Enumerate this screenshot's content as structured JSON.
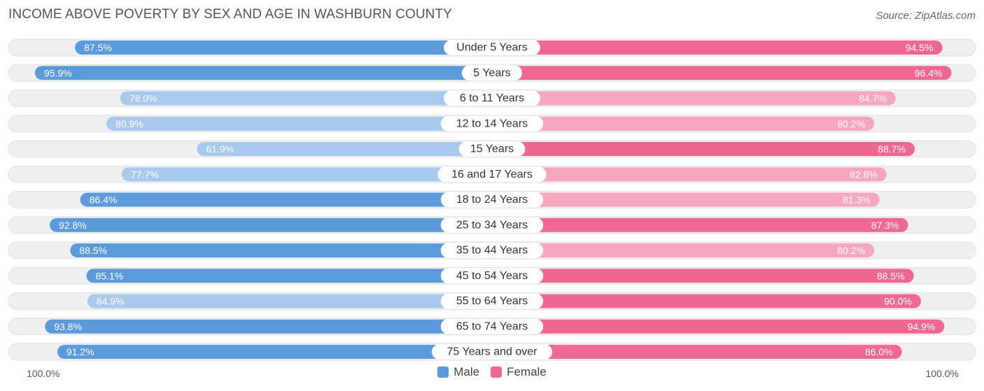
{
  "title": "INCOME ABOVE POVERTY BY SEX AND AGE IN WASHBURN COUNTY",
  "source": "Source: ZipAtlas.com",
  "chart_data": {
    "type": "bar",
    "orientation": "horizontal-diverging",
    "categories": [
      "Under 5 Years",
      "5 Years",
      "6 to 11 Years",
      "12 to 14 Years",
      "15 Years",
      "16 and 17 Years",
      "18 to 24 Years",
      "25 to 34 Years",
      "35 to 44 Years",
      "45 to 54 Years",
      "55 to 64 Years",
      "65 to 74 Years",
      "75 Years and over"
    ],
    "series": [
      {
        "name": "Male",
        "values": [
          87.5,
          95.9,
          78.0,
          80.9,
          61.9,
          77.7,
          86.4,
          92.8,
          88.5,
          85.1,
          84.9,
          93.8,
          91.2
        ],
        "labels": [
          "87.5%",
          "95.9%",
          "78.0%",
          "80.9%",
          "61.9%",
          "77.7%",
          "86.4%",
          "92.8%",
          "88.5%",
          "85.1%",
          "84.9%",
          "93.8%",
          "91.2%"
        ]
      },
      {
        "name": "Female",
        "values": [
          94.5,
          96.4,
          84.7,
          80.2,
          88.7,
          82.8,
          81.3,
          87.3,
          80.2,
          88.5,
          90.0,
          94.9,
          86.0
        ],
        "labels": [
          "94.5%",
          "96.4%",
          "84.7%",
          "80.2%",
          "88.7%",
          "82.8%",
          "81.3%",
          "87.3%",
          "80.2%",
          "88.5%",
          "90.0%",
          "94.9%",
          "86.0%"
        ]
      }
    ],
    "xlim": [
      0,
      100
    ],
    "axis_left_label": "100.0%",
    "axis_right_label": "100.0%",
    "legend_position": "bottom-center"
  },
  "legend": [
    {
      "label": "Male",
      "color": "#5b9bdc"
    },
    {
      "label": "Female",
      "color": "#f06892"
    }
  ],
  "colors": {
    "male_strong": "#5b9bdc",
    "male_light": "#a9c9ef",
    "female_strong": "#f06892",
    "female_light": "#f7a6c0",
    "track": "#efefef"
  }
}
